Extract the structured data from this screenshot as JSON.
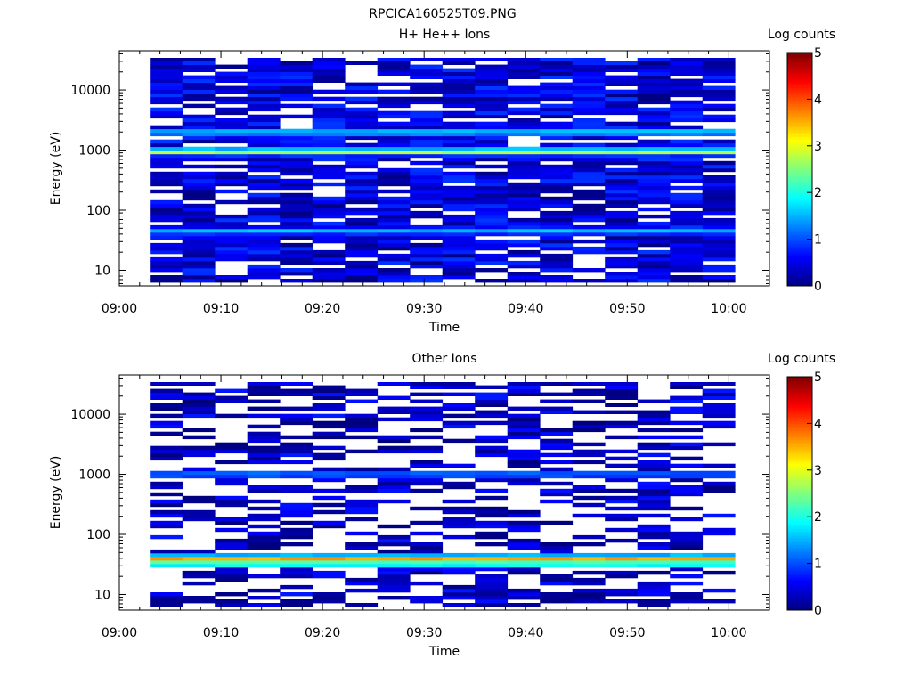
{
  "figure": {
    "title": "RPCICA160525T09.PNG"
  },
  "colormap": [
    "#00007f",
    "#0000ff",
    "#007fff",
    "#00ffff",
    "#7fff7f",
    "#ffff00",
    "#ff7f00",
    "#ff0000",
    "#7f0000"
  ],
  "chart_data": [
    {
      "type": "heatmap",
      "title": "H+ He++ Ions",
      "xlabel": "Time",
      "ylabel": "Energy (eV)",
      "x_ticks": [
        "09:00",
        "09:10",
        "09:20",
        "09:30",
        "09:40",
        "09:50",
        "10:00"
      ],
      "xlim_minutes": [
        0,
        64
      ],
      "y_scale": "log",
      "ylim": [
        5.5,
        45000
      ],
      "y_tick_labels": [
        "10",
        "100",
        "1000",
        "10000"
      ],
      "colorbar": {
        "label": "Log counts",
        "range": [
          0,
          5
        ],
        "ticks": [
          "0",
          "1",
          "2",
          "3",
          "4",
          "5"
        ]
      },
      "time_bins": 18,
      "time_bin_start_min": 3,
      "time_bin_width_min": 3.2,
      "energy_bins": 64,
      "background_log_counts": 0.45,
      "bands": [
        {
          "energy_eV": 950,
          "log_counts": 2.75
        },
        {
          "energy_eV": 2000,
          "log_counts": 1.7
        },
        {
          "energy_eV": 45,
          "log_counts": 1.55
        }
      ]
    },
    {
      "type": "heatmap",
      "title": "Other Ions",
      "xlabel": "Time",
      "ylabel": "Energy (eV)",
      "x_ticks": [
        "09:00",
        "09:10",
        "09:20",
        "09:30",
        "09:40",
        "09:50",
        "10:00"
      ],
      "xlim_minutes": [
        0,
        64
      ],
      "y_scale": "log",
      "ylim": [
        5.5,
        45000
      ],
      "y_tick_labels": [
        "10",
        "100",
        "1000",
        "10000"
      ],
      "colorbar": {
        "label": "Log counts",
        "range": [
          0,
          5
        ],
        "ticks": [
          "0",
          "1",
          "2",
          "3",
          "4",
          "5"
        ]
      },
      "time_bins": 18,
      "time_bin_start_min": 3,
      "time_bin_width_min": 3.2,
      "energy_bins": 64,
      "background_log_counts": 0.3,
      "bands": [
        {
          "energy_eV": 40,
          "log_counts": 3.55
        },
        {
          "energy_eV": 33,
          "log_counts": 2.6
        },
        {
          "energy_eV": 1000,
          "log_counts": 1.25
        }
      ]
    }
  ]
}
